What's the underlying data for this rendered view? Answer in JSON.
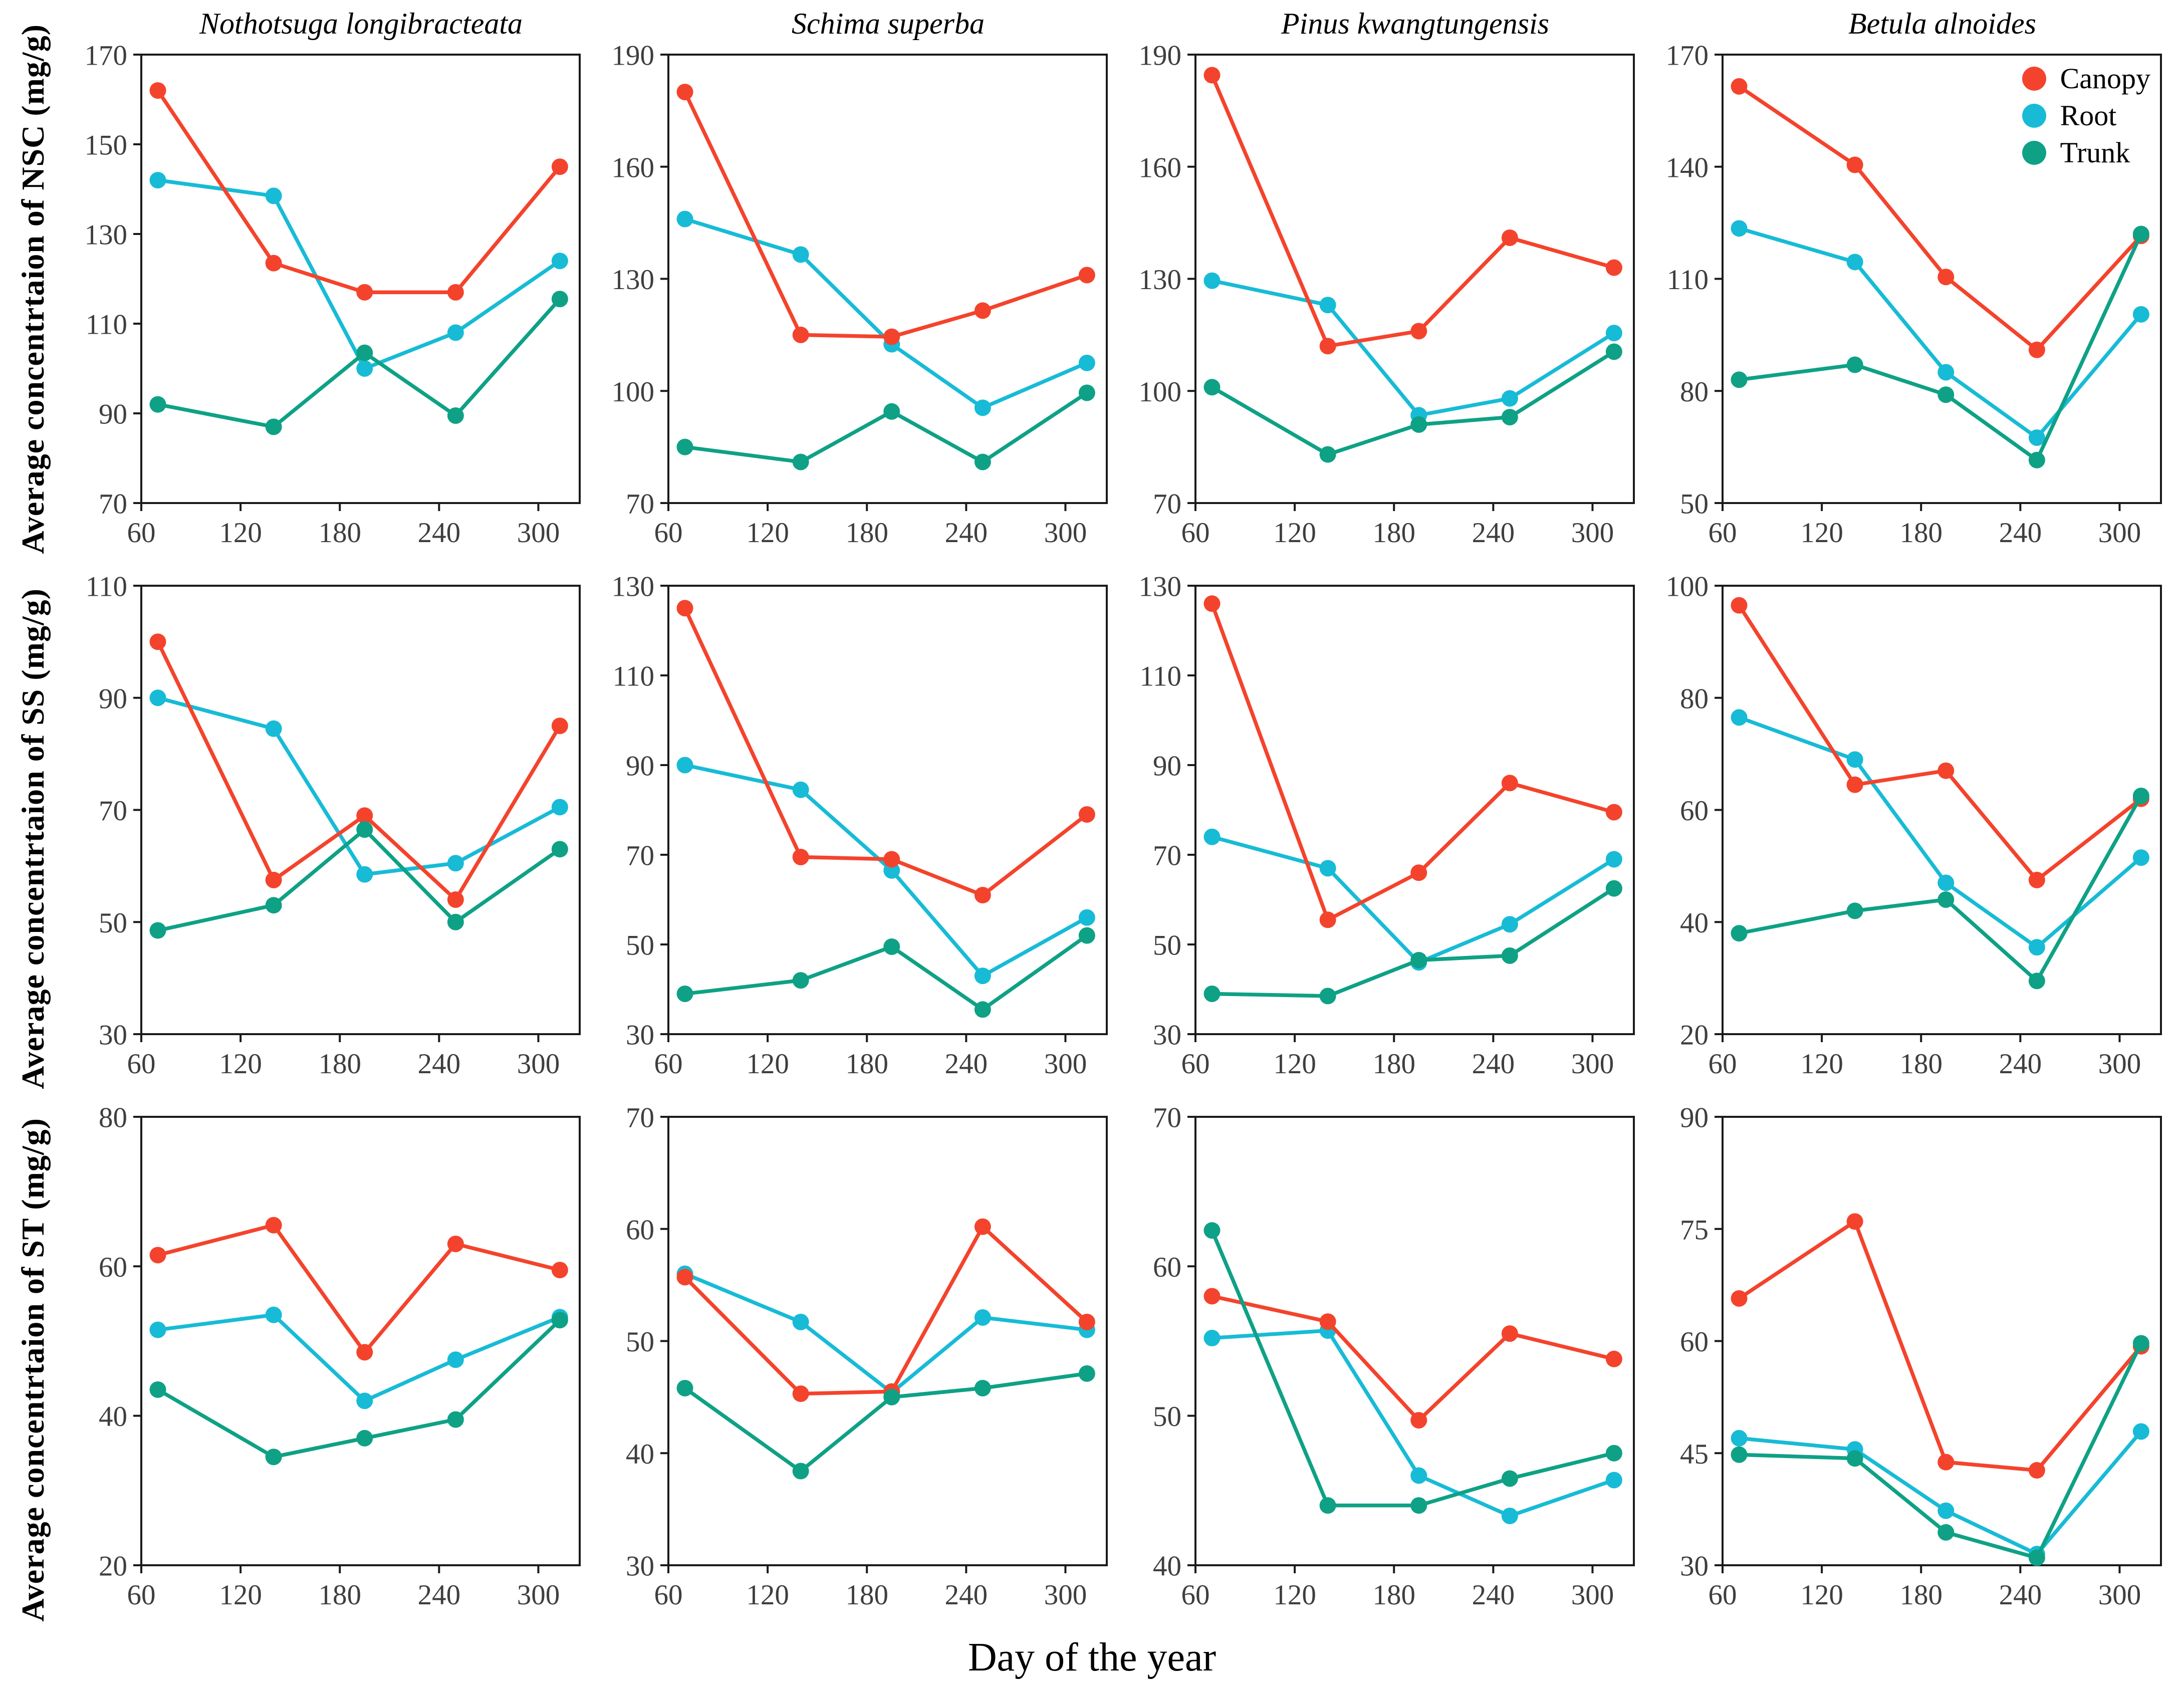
{
  "figure": {
    "xlabel": "Day of the year",
    "row_ylabels": [
      "Average concentrtaion of NSC (mg/g)",
      "Average concentrtaion of SS (mg/g)",
      "Average concentrtaion of ST (mg/g)"
    ],
    "column_titles": [
      "Nothotsuga longibracteata",
      "Schima superba",
      "Pinus kwangtungensis",
      "Betula alnoides"
    ],
    "legend": {
      "items": [
        {
          "label": "Canopy",
          "color": "#F4432C"
        },
        {
          "label": "Root",
          "color": "#17BBD6"
        },
        {
          "label": "Trunk",
          "color": "#0EA185"
        }
      ]
    },
    "tick_color": "#3e3e3e",
    "axis_color": "#1a1a1a"
  },
  "chart_data": [
    {
      "type": "line",
      "row": 0,
      "col": 0,
      "title": "Nothotsuga longibracteata",
      "ylabel": "Average concentrtaion of NSC (mg/g)",
      "x": [
        70,
        140,
        195,
        250,
        313
      ],
      "xticks": [
        60,
        120,
        180,
        240,
        300
      ],
      "xlim": [
        60,
        325
      ],
      "ylim": [
        70,
        170
      ],
      "yticks": [
        70,
        90,
        110,
        130,
        150,
        170
      ],
      "legend": false,
      "series": [
        {
          "name": "Canopy",
          "values": [
            162,
            123.5,
            117,
            117,
            145
          ]
        },
        {
          "name": "Root",
          "values": [
            142,
            138.5,
            100,
            108,
            124
          ]
        },
        {
          "name": "Trunk",
          "values": [
            92,
            87,
            103.5,
            89.5,
            115.5
          ]
        }
      ]
    },
    {
      "type": "line",
      "row": 0,
      "col": 1,
      "title": "Schima superba",
      "ylabel": "Average concentrtaion of NSC (mg/g)",
      "x": [
        70,
        140,
        195,
        250,
        313
      ],
      "xticks": [
        60,
        120,
        180,
        240,
        300
      ],
      "xlim": [
        60,
        325
      ],
      "ylim": [
        70,
        190
      ],
      "yticks": [
        70,
        100,
        130,
        160,
        190
      ],
      "legend": false,
      "series": [
        {
          "name": "Canopy",
          "values": [
            180,
            115,
            114.5,
            121.5,
            131
          ]
        },
        {
          "name": "Root",
          "values": [
            146,
            136.5,
            112.5,
            95.5,
            107.5
          ]
        },
        {
          "name": "Trunk",
          "values": [
            85,
            81,
            94.5,
            81,
            99.5
          ]
        }
      ]
    },
    {
      "type": "line",
      "row": 0,
      "col": 2,
      "title": "Pinus kwangtungensis",
      "ylabel": "Average concentrtaion of NSC (mg/g)",
      "x": [
        70,
        140,
        195,
        250,
        313
      ],
      "xticks": [
        60,
        120,
        180,
        240,
        300
      ],
      "xlim": [
        60,
        325
      ],
      "ylim": [
        70,
        190
      ],
      "yticks": [
        70,
        100,
        130,
        160,
        190
      ],
      "legend": false,
      "series": [
        {
          "name": "Canopy",
          "values": [
            184.5,
            112,
            116,
            141,
            133
          ]
        },
        {
          "name": "Root",
          "values": [
            129.5,
            123,
            93.5,
            98,
            115.5
          ]
        },
        {
          "name": "Trunk",
          "values": [
            101,
            83,
            91,
            93,
            110.5
          ]
        }
      ]
    },
    {
      "type": "line",
      "row": 0,
      "col": 3,
      "title": "Betula alnoides",
      "ylabel": "Average concentrtaion of NSC (mg/g)",
      "x": [
        70,
        140,
        195,
        250,
        313
      ],
      "xticks": [
        60,
        120,
        180,
        240,
        300
      ],
      "xlim": [
        60,
        325
      ],
      "ylim": [
        50,
        170
      ],
      "yticks": [
        50,
        80,
        110,
        140,
        170
      ],
      "legend": true,
      "series": [
        {
          "name": "Canopy",
          "values": [
            161.5,
            140.5,
            110.5,
            91,
            121.5
          ]
        },
        {
          "name": "Root",
          "values": [
            123.5,
            114.5,
            85,
            67.5,
            100.5
          ]
        },
        {
          "name": "Trunk",
          "values": [
            83,
            87,
            79,
            61.5,
            122
          ]
        }
      ]
    },
    {
      "type": "line",
      "row": 1,
      "col": 0,
      "title": "",
      "ylabel": "Average concentrtaion of SS (mg/g)",
      "x": [
        70,
        140,
        195,
        250,
        313
      ],
      "xticks": [
        60,
        120,
        180,
        240,
        300
      ],
      "xlim": [
        60,
        325
      ],
      "ylim": [
        30,
        110
      ],
      "yticks": [
        30,
        50,
        70,
        90,
        110
      ],
      "legend": false,
      "series": [
        {
          "name": "Canopy",
          "values": [
            100,
            57.5,
            69,
            54,
            85
          ]
        },
        {
          "name": "Root",
          "values": [
            90,
            84.5,
            58.5,
            60.5,
            70.5
          ]
        },
        {
          "name": "Trunk",
          "values": [
            48.5,
            53,
            66.5,
            50,
            63
          ]
        }
      ]
    },
    {
      "type": "line",
      "row": 1,
      "col": 1,
      "title": "",
      "ylabel": "Average concentrtaion of SS (mg/g)",
      "x": [
        70,
        140,
        195,
        250,
        313
      ],
      "xticks": [
        60,
        120,
        180,
        240,
        300
      ],
      "xlim": [
        60,
        325
      ],
      "ylim": [
        30,
        130
      ],
      "yticks": [
        30,
        50,
        70,
        90,
        110,
        130
      ],
      "legend": false,
      "series": [
        {
          "name": "Canopy",
          "values": [
            125,
            69.5,
            69,
            61,
            79
          ]
        },
        {
          "name": "Root",
          "values": [
            90,
            84.5,
            66.5,
            43,
            56
          ]
        },
        {
          "name": "Trunk",
          "values": [
            39,
            42,
            49.5,
            35.5,
            52
          ]
        }
      ]
    },
    {
      "type": "line",
      "row": 1,
      "col": 2,
      "title": "",
      "ylabel": "Average concentrtaion of SS (mg/g)",
      "x": [
        70,
        140,
        195,
        250,
        313
      ],
      "xticks": [
        60,
        120,
        180,
        240,
        300
      ],
      "xlim": [
        60,
        325
      ],
      "ylim": [
        30,
        130
      ],
      "yticks": [
        30,
        50,
        70,
        90,
        110,
        130
      ],
      "legend": false,
      "series": [
        {
          "name": "Canopy",
          "values": [
            126,
            55.5,
            66,
            86,
            79.5
          ]
        },
        {
          "name": "Root",
          "values": [
            74,
            67,
            46,
            54.5,
            69
          ]
        },
        {
          "name": "Trunk",
          "values": [
            39,
            38.5,
            46.5,
            47.5,
            62.5
          ]
        }
      ]
    },
    {
      "type": "line",
      "row": 1,
      "col": 3,
      "title": "",
      "ylabel": "Average concentrtaion of SS (mg/g)",
      "x": [
        70,
        140,
        195,
        250,
        313
      ],
      "xticks": [
        60,
        120,
        180,
        240,
        300
      ],
      "xlim": [
        60,
        325
      ],
      "ylim": [
        20,
        100
      ],
      "yticks": [
        20,
        40,
        60,
        80,
        100
      ],
      "legend": false,
      "series": [
        {
          "name": "Canopy",
          "values": [
            96.5,
            64.5,
            67,
            47.5,
            62
          ]
        },
        {
          "name": "Root",
          "values": [
            76.5,
            69,
            47,
            35.5,
            51.5
          ]
        },
        {
          "name": "Trunk",
          "values": [
            38,
            42,
            44,
            29.5,
            62.5
          ]
        }
      ]
    },
    {
      "type": "line",
      "row": 2,
      "col": 0,
      "title": "",
      "ylabel": "Average concentrtaion of ST (mg/g)",
      "x": [
        70,
        140,
        195,
        250,
        313
      ],
      "xticks": [
        60,
        120,
        180,
        240,
        300
      ],
      "xlim": [
        60,
        325
      ],
      "ylim": [
        20,
        80
      ],
      "yticks": [
        20,
        40,
        60,
        80
      ],
      "legend": false,
      "series": [
        {
          "name": "Canopy",
          "values": [
            61.5,
            65.5,
            48.5,
            63,
            59.5
          ]
        },
        {
          "name": "Root",
          "values": [
            51.5,
            53.5,
            42,
            47.5,
            53.2
          ]
        },
        {
          "name": "Trunk",
          "values": [
            43.5,
            34.5,
            37,
            39.5,
            52.8
          ]
        }
      ]
    },
    {
      "type": "line",
      "row": 2,
      "col": 1,
      "title": "",
      "ylabel": "Average concentrtaion of ST (mg/g)",
      "x": [
        70,
        140,
        195,
        250,
        313
      ],
      "xticks": [
        60,
        120,
        180,
        240,
        300
      ],
      "xlim": [
        60,
        325
      ],
      "ylim": [
        30,
        70
      ],
      "yticks": [
        30,
        40,
        50,
        60,
        70
      ],
      "legend": false,
      "series": [
        {
          "name": "Canopy",
          "values": [
            55.7,
            45.3,
            45.5,
            60.2,
            51.7
          ]
        },
        {
          "name": "Root",
          "values": [
            56,
            51.7,
            45.4,
            52.1,
            51
          ]
        },
        {
          "name": "Trunk",
          "values": [
            45.8,
            38.4,
            45,
            45.8,
            47.1
          ]
        }
      ]
    },
    {
      "type": "line",
      "row": 2,
      "col": 2,
      "title": "",
      "ylabel": "Average concentrtaion of ST (mg/g)",
      "x": [
        70,
        140,
        195,
        250,
        313
      ],
      "xticks": [
        60,
        120,
        180,
        240,
        300
      ],
      "xlim": [
        60,
        325
      ],
      "ylim": [
        40,
        70
      ],
      "yticks": [
        40,
        50,
        60,
        70
      ],
      "legend": false,
      "series": [
        {
          "name": "Canopy",
          "values": [
            58,
            56.3,
            49.7,
            55.5,
            53.8
          ]
        },
        {
          "name": "Root",
          "values": [
            55.2,
            55.7,
            46,
            43.3,
            45.7
          ]
        },
        {
          "name": "Trunk",
          "values": [
            62.4,
            44,
            44,
            45.8,
            47.5
          ]
        }
      ]
    },
    {
      "type": "line",
      "row": 2,
      "col": 3,
      "title": "",
      "ylabel": "Average concentrtaion of ST (mg/g)",
      "x": [
        70,
        140,
        195,
        250,
        313
      ],
      "xticks": [
        60,
        120,
        180,
        240,
        300
      ],
      "xlim": [
        60,
        325
      ],
      "ylim": [
        30,
        90
      ],
      "yticks": [
        30,
        45,
        60,
        75,
        90
      ],
      "legend": false,
      "series": [
        {
          "name": "Canopy",
          "values": [
            65.7,
            76,
            43.8,
            42.7,
            59.3
          ]
        },
        {
          "name": "Root",
          "values": [
            47,
            45.5,
            37.3,
            31.5,
            47.9
          ]
        },
        {
          "name": "Trunk",
          "values": [
            44.8,
            44.3,
            34.4,
            31,
            59.7
          ]
        }
      ]
    }
  ]
}
